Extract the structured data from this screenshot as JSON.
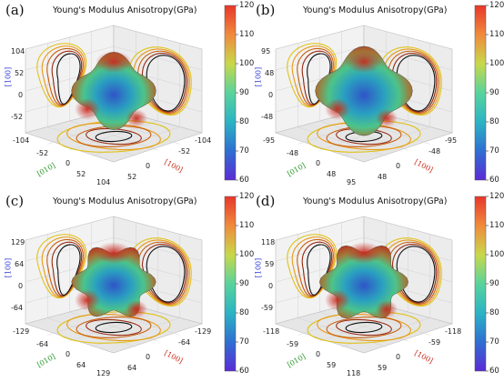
{
  "chart_data": [
    {
      "type": "other",
      "panel_label": "(a)",
      "title": "Young's Modulus Anisotropy(GPa)",
      "axis_ticks": {
        "min_label": "-104",
        "mid_low": "-52",
        "zero": "0",
        "mid_high": "52",
        "max_label": "104"
      },
      "axis_labels": {
        "vertical": "[100]",
        "left": "[010]",
        "right": "[100]"
      },
      "colorbar": {
        "ticks": [
          "120",
          "110",
          "100",
          "90",
          "80",
          "70",
          "60"
        ],
        "range": [
          60,
          120
        ]
      }
    },
    {
      "type": "other",
      "panel_label": "(b)",
      "title": "Young's Modulus Anisotropy(GPa)",
      "axis_ticks": {
        "min_label": "-95",
        "mid_low": "-48",
        "zero": "0",
        "mid_high": "48",
        "max_label": "95"
      },
      "axis_labels": {
        "vertical": "[100]",
        "left": "[010]",
        "right": "[100]"
      },
      "colorbar": {
        "ticks": [
          "120",
          "110",
          "100",
          "90",
          "80",
          "70",
          "60"
        ],
        "range": [
          60,
          120
        ]
      }
    },
    {
      "type": "other",
      "panel_label": "(c)",
      "title": "Young's Modulus Anisotropy(GPa)",
      "axis_ticks": {
        "min_label": "-129",
        "mid_low": "-64",
        "zero": "0",
        "mid_high": "64",
        "max_label": "129"
      },
      "axis_labels": {
        "vertical": "[100]",
        "left": "[010]",
        "right": "[100]"
      },
      "colorbar": {
        "ticks": [
          "120",
          "110",
          "100",
          "90",
          "80",
          "70",
          "60"
        ],
        "range": [
          60,
          120
        ]
      }
    },
    {
      "type": "other",
      "panel_label": "(d)",
      "title": "Young's Modulus Anisotropy(GPa)",
      "axis_ticks": {
        "min_label": "-118",
        "mid_low": "-59",
        "zero": "0",
        "mid_high": "59",
        "max_label": "118"
      },
      "axis_labels": {
        "vertical": "[100]",
        "left": "[010]",
        "right": "[100]"
      },
      "colorbar": {
        "ticks": [
          "120",
          "110",
          "100",
          "90",
          "80",
          "70",
          "60"
        ],
        "range": [
          60,
          120
        ]
      }
    }
  ],
  "colors": {
    "colorbar_stops": [
      "#e8372a",
      "#f08a3c",
      "#c8d84a",
      "#59d39c",
      "#2bb4c4",
      "#2f6fd1",
      "#5b2bd6"
    ],
    "axis_label_vertical": "#2a35d6",
    "axis_label_left": "#2a9a2a",
    "axis_label_right": "#c83020",
    "contour_colors": [
      "#e0c21a",
      "#e89a18",
      "#c86010",
      "#9a2a10",
      "#101010"
    ]
  }
}
